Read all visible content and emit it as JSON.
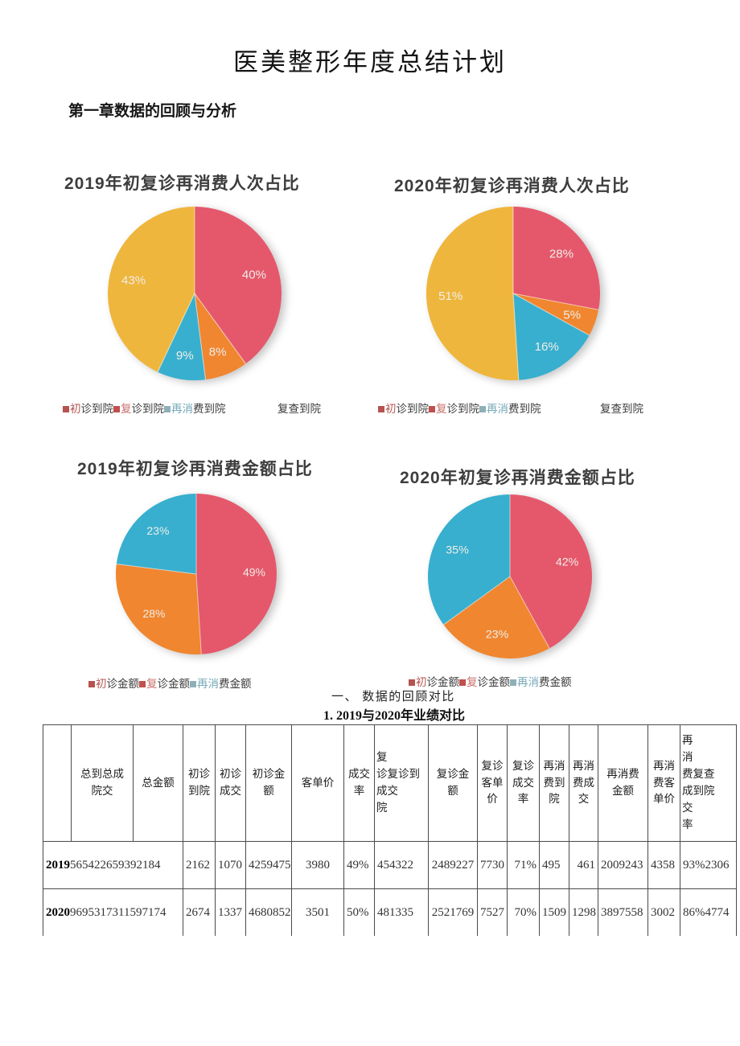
{
  "document": {
    "title": "医美整形年度总结计划",
    "section_heading": "第一章数据的回顾与分析",
    "subsection_roman": "一、 数据的回顾对比",
    "subsection_numbered": "1. 2019与2020年业绩对比"
  },
  "colors": {
    "pie_red": "#E5586B",
    "pie_orange": "#F0862F",
    "pie_blue": "#38AFCE",
    "pie_yellow": "#EFB63D",
    "legend_red": "#B5534F",
    "legend_pink": "#C9706E",
    "legend_teal": "#74A9B8",
    "pie_label": "#EFEDE8"
  },
  "chart_data": [
    {
      "type": "pie",
      "title": "2019年初复诊再消费人次占比",
      "slices": [
        {
          "label": "初诊到院",
          "value": 40,
          "color": "#E5586B"
        },
        {
          "label": "复诊到院",
          "value": 8,
          "color": "#F0862F"
        },
        {
          "label": "再消费到院",
          "value": 9,
          "color": "#38AFCE"
        },
        {
          "label": "复查到院",
          "value": 43,
          "color": "#EFB63D"
        }
      ],
      "legend": {
        "items": [
          {
            "marker_color": "#B5534F",
            "segments": [
              {
                "text": "初",
                "color": "#B5534F"
              },
              {
                "text": "诊到院",
                "color": "#3A3A3A"
              }
            ]
          },
          {
            "marker_color": "#C0504D",
            "segments": [
              {
                "text": "复",
                "color": "#C9706E"
              },
              {
                "text": "诊到院",
                "color": "#3A3A3A"
              }
            ]
          },
          {
            "marker_color": "#8FAFB8",
            "segments": [
              {
                "text": "再消",
                "color": "#74A9B8"
              },
              {
                "text": "费到院",
                "color": "#3A3A3A"
              }
            ]
          }
        ],
        "extra_label": "复查到院"
      }
    },
    {
      "type": "pie",
      "title": "2020年初复诊再消费人次占比",
      "slices": [
        {
          "label": "初诊到院",
          "value": 28,
          "color": "#E5586B"
        },
        {
          "label": "复诊到院",
          "value": 5,
          "color": "#F0862F"
        },
        {
          "label": "再消费到院",
          "value": 16,
          "color": "#38AFCE"
        },
        {
          "label": "复查到院",
          "value": 51,
          "color": "#EFB63D"
        }
      ],
      "legend": {
        "items": [
          {
            "marker_color": "#B5534F",
            "segments": [
              {
                "text": "初",
                "color": "#B5534F"
              },
              {
                "text": "诊到院",
                "color": "#3A3A3A"
              }
            ]
          },
          {
            "marker_color": "#C0504D",
            "segments": [
              {
                "text": "复",
                "color": "#C9706E"
              },
              {
                "text": "诊到院",
                "color": "#3A3A3A"
              }
            ]
          },
          {
            "marker_color": "#8FAFB8",
            "segments": [
              {
                "text": "再消",
                "color": "#74A9B8"
              },
              {
                "text": "费到院",
                "color": "#3A3A3A"
              }
            ]
          }
        ],
        "extra_label": "复查到院"
      }
    },
    {
      "type": "pie",
      "title": "2019年初复诊再消费金额占比",
      "slices": [
        {
          "label": "初诊金额",
          "value": 49,
          "color": "#E5586B"
        },
        {
          "label": "复诊金额",
          "value": 28,
          "color": "#F0862F"
        },
        {
          "label": "再消费金额",
          "value": 23,
          "color": "#38AFCE"
        }
      ],
      "legend": {
        "items": [
          {
            "marker_color": "#B5534F",
            "segments": [
              {
                "text": "初",
                "color": "#B5534F"
              },
              {
                "text": "诊金额",
                "color": "#3A3A3A"
              }
            ]
          },
          {
            "marker_color": "#C0504D",
            "segments": [
              {
                "text": "复",
                "color": "#C9706E"
              },
              {
                "text": "诊金额",
                "color": "#3A3A3A"
              }
            ]
          },
          {
            "marker_color": "#8FAFB8",
            "segments": [
              {
                "text": "再消",
                "color": "#74A9B8"
              },
              {
                "text": "费金额",
                "color": "#3A3A3A"
              }
            ]
          }
        ]
      }
    },
    {
      "type": "pie",
      "title": "2020年初复诊再消费金额占比",
      "slices": [
        {
          "label": "初诊金额",
          "value": 42,
          "color": "#E5586B"
        },
        {
          "label": "复诊金额",
          "value": 23,
          "color": "#F0862F"
        },
        {
          "label": "再消费金额",
          "value": 35,
          "color": "#38AFCE"
        }
      ],
      "legend": {
        "items": [
          {
            "marker_color": "#B5534F",
            "segments": [
              {
                "text": "初",
                "color": "#B5534F"
              },
              {
                "text": "诊金额",
                "color": "#3A3A3A"
              }
            ]
          },
          {
            "marker_color": "#C0504D",
            "segments": [
              {
                "text": "复",
                "color": "#C9706E"
              },
              {
                "text": "诊金额",
                "color": "#3A3A3A"
              }
            ]
          },
          {
            "marker_color": "#8FAFB8",
            "segments": [
              {
                "text": "再消",
                "color": "#74A9B8"
              },
              {
                "text": "费金额",
                "color": "#3A3A3A"
              }
            ]
          }
        ]
      }
    }
  ],
  "table": {
    "columns": [
      "",
      "总到总成\n院交",
      "总金额",
      "初诊\n到院",
      "初诊\n成交",
      "初诊金\n额",
      "客单价",
      "成交\n率",
      "复\n诊复诊到\n成交\n院",
      "复诊金\n额",
      "复诊\n客单\n价",
      "复诊\n成交\n率",
      "再消\n费到\n院",
      "再消\n费成\n交",
      "再消费\n金额",
      "再消\n费客\n单价",
      "再\n消\n费复查\n成到院\n交\n率"
    ],
    "rows": [
      {
        "year": "2019",
        "total_merged": "565422659392184",
        "cells": [
          "2162",
          "1070",
          "4259475",
          "3980",
          "49%",
          "454322",
          "2489227",
          "7730",
          "71%",
          "495",
          "461",
          "2009243",
          "4358",
          "93%2306"
        ]
      },
      {
        "year": "2020",
        "total_merged": "9695317311597174",
        "cells": [
          "2674",
          "1337",
          "4680852",
          "3501",
          "50%",
          "481335",
          "2521769",
          "7527",
          "70%",
          "1509",
          "1298",
          "3897558",
          "3002",
          "86%4774"
        ]
      }
    ]
  }
}
